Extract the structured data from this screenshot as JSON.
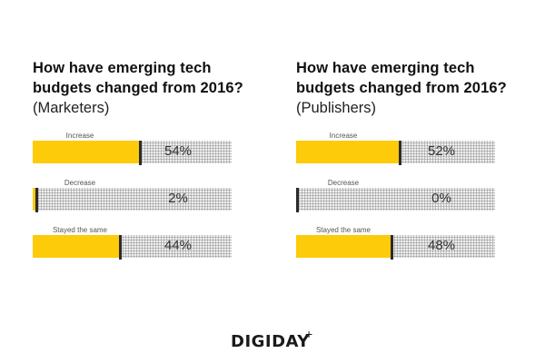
{
  "colors": {
    "fill": "#fdcb09",
    "marker": "#2b2b2b",
    "track": "#efefef"
  },
  "chart_data": [
    {
      "type": "bar",
      "title": "How have emerging tech budgets changed from 2016?",
      "subtitle": "(Marketers)",
      "categories": [
        "Increase",
        "Decrease",
        "Stayed the same"
      ],
      "values": [
        54,
        2,
        44
      ],
      "value_labels": [
        "54%",
        "2%",
        "44%"
      ],
      "xlim": [
        0,
        100
      ],
      "orientation": "horizontal"
    },
    {
      "type": "bar",
      "title": "How have emerging tech budgets changed from 2016?",
      "subtitle": "(Publishers)",
      "categories": [
        "Increase",
        "Decrease",
        "Stayed the same"
      ],
      "values": [
        52,
        0,
        48
      ],
      "value_labels": [
        "52%",
        "0%",
        "48%"
      ],
      "xlim": [
        0,
        100
      ],
      "orientation": "horizontal"
    }
  ],
  "panels": [
    {
      "title_line1": "How have emerging tech",
      "title_line2": "budgets changed from 2016?",
      "subtitle": "(Marketers)"
    },
    {
      "title_line1": "How have emerging tech",
      "title_line2": "budgets changed from 2016?",
      "subtitle": "(Publishers)"
    }
  ],
  "logo": {
    "text": "DIGIDAY",
    "suffix": "+"
  }
}
